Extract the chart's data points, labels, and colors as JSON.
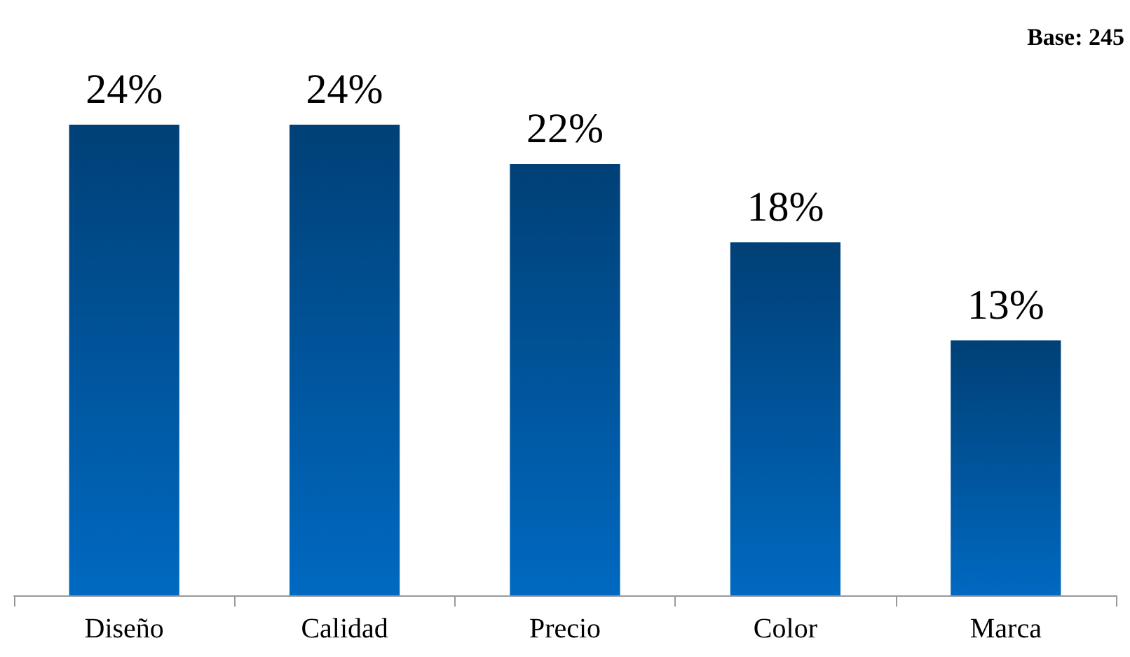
{
  "chart_data": {
    "type": "bar",
    "categories": [
      "Diseño",
      "Calidad",
      "Precio",
      "Color",
      "Marca"
    ],
    "values": [
      24,
      24,
      22,
      18,
      13
    ],
    "value_labels": [
      "24%",
      "24%",
      "22%",
      "18%",
      "13%"
    ],
    "color": "#005ba8",
    "annotations": [
      "Base: 245"
    ]
  }
}
